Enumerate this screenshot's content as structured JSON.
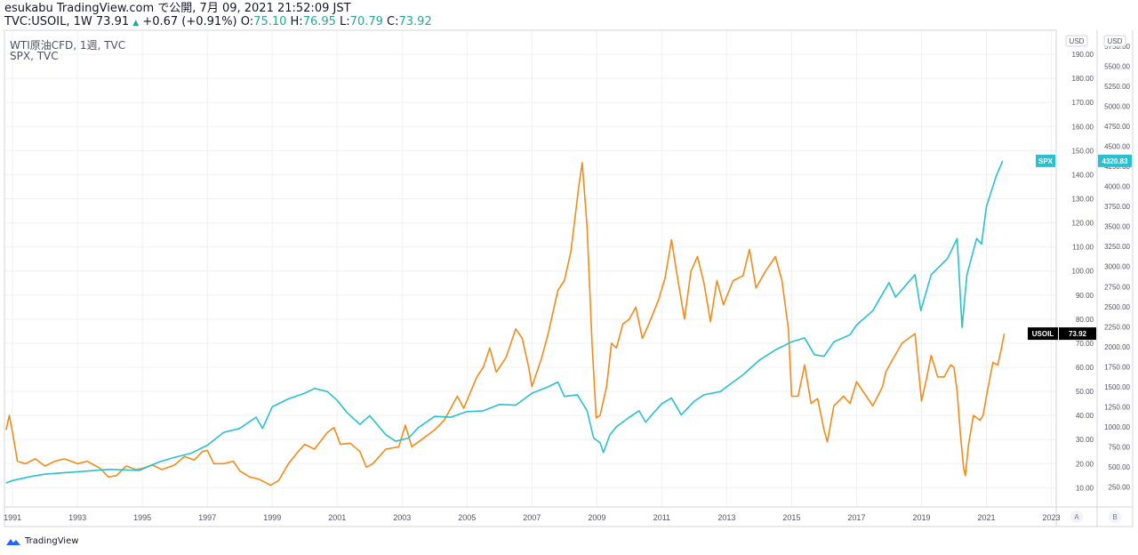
{
  "header": {
    "publish_line": "esukabu TradingView.com で公開, 7月 09, 2021 21:52:09 JST",
    "symbol": "TVC:USOIL, 1W",
    "last": "73.91",
    "change": "+0.67 (+0.91%)",
    "open_label": "O:",
    "open": "75.10",
    "high_label": "H:",
    "high": "76.95",
    "low_label": "L:",
    "low": "70.79",
    "close_label": "C:",
    "close": "73.92"
  },
  "legend": {
    "main": "WTI原油CFD, 1週, TVC",
    "compare": "SPX, TVC"
  },
  "footer": {
    "brand": "TradingView"
  },
  "colors": {
    "oil": "#f28b19",
    "spx": "#29c0cf",
    "up": "#26a69a",
    "badge_dark": "#000000"
  },
  "chart_data": {
    "type": "line",
    "xlim": [
      1990.75,
      2023.15
    ],
    "x_ticks": [
      "1991",
      "1993",
      "1995",
      "1997",
      "1999",
      "2001",
      "2003",
      "2005",
      "2007",
      "2009",
      "2011",
      "2013",
      "2015",
      "2017",
      "2019",
      "2021",
      "2023"
    ],
    "axis_a": {
      "label": "A",
      "unit": "USD",
      "ylim": [
        2,
        200
      ],
      "ticks": [
        "10.00",
        "20.00",
        "30.00",
        "40.00",
        "50.00",
        "60.00",
        "70.00",
        "80.00",
        "90.00",
        "100.00",
        "110.00",
        "120.00",
        "130.00",
        "140.00",
        "150.00",
        "160.00",
        "170.00",
        "180.00",
        "190.00"
      ]
    },
    "axis_b": {
      "label": "B",
      "unit": "USD",
      "ylim": [
        0,
        5950
      ],
      "ticks": [
        "250.00",
        "500.00",
        "750.00",
        "1000.00",
        "1250.00",
        "1500.00",
        "1750.00",
        "2000.00",
        "2250.00",
        "2500.00",
        "2750.00",
        "3000.00",
        "3250.00",
        "3500.00",
        "3750.00",
        "4000.00",
        "4250.00",
        "4500.00",
        "4750.00",
        "5000.00",
        "5250.00",
        "5500.00",
        "5750.00"
      ]
    },
    "grid": true,
    "series": [
      {
        "name": "USOIL",
        "axis": "A",
        "last_value": "73.92",
        "points": [
          [
            1990.8,
            34
          ],
          [
            1990.9,
            40
          ],
          [
            1991.0,
            33
          ],
          [
            1991.15,
            21
          ],
          [
            1991.4,
            20
          ],
          [
            1991.7,
            22
          ],
          [
            1992.0,
            19
          ],
          [
            1992.3,
            21
          ],
          [
            1992.6,
            22
          ],
          [
            1993.0,
            20
          ],
          [
            1993.3,
            21
          ],
          [
            1993.7,
            18
          ],
          [
            1993.95,
            14.5
          ],
          [
            1994.2,
            15
          ],
          [
            1994.5,
            19
          ],
          [
            1994.8,
            17.5
          ],
          [
            1995.0,
            18
          ],
          [
            1995.3,
            19.5
          ],
          [
            1995.6,
            17.5
          ],
          [
            1996.0,
            19.5
          ],
          [
            1996.3,
            23
          ],
          [
            1996.6,
            21.5
          ],
          [
            1996.85,
            25
          ],
          [
            1997.0,
            25.5
          ],
          [
            1997.2,
            20
          ],
          [
            1997.5,
            20
          ],
          [
            1997.8,
            21
          ],
          [
            1998.0,
            17
          ],
          [
            1998.3,
            14.5
          ],
          [
            1998.6,
            13.5
          ],
          [
            1998.95,
            11
          ],
          [
            1999.2,
            13
          ],
          [
            1999.5,
            20
          ],
          [
            1999.8,
            25
          ],
          [
            2000.0,
            28
          ],
          [
            2000.3,
            26
          ],
          [
            2000.7,
            33
          ],
          [
            2000.9,
            35
          ],
          [
            2001.1,
            28
          ],
          [
            2001.4,
            28.5
          ],
          [
            2001.7,
            25
          ],
          [
            2001.9,
            18.5
          ],
          [
            2002.1,
            20
          ],
          [
            2002.5,
            26
          ],
          [
            2002.9,
            27
          ],
          [
            2003.1,
            36
          ],
          [
            2003.3,
            27
          ],
          [
            2003.6,
            30
          ],
          [
            2004.0,
            34
          ],
          [
            2004.3,
            38
          ],
          [
            2004.7,
            48
          ],
          [
            2004.9,
            43
          ],
          [
            2005.3,
            56
          ],
          [
            2005.5,
            60
          ],
          [
            2005.7,
            68
          ],
          [
            2005.9,
            58
          ],
          [
            2006.2,
            64
          ],
          [
            2006.5,
            76
          ],
          [
            2006.7,
            72
          ],
          [
            2006.9,
            60
          ],
          [
            2007.0,
            52
          ],
          [
            2007.3,
            64
          ],
          [
            2007.5,
            74
          ],
          [
            2007.8,
            92
          ],
          [
            2008.0,
            96
          ],
          [
            2008.2,
            108
          ],
          [
            2008.45,
            136
          ],
          [
            2008.55,
            145
          ],
          [
            2008.7,
            118
          ],
          [
            2008.85,
            70
          ],
          [
            2008.98,
            39
          ],
          [
            2009.1,
            40
          ],
          [
            2009.3,
            52
          ],
          [
            2009.45,
            70
          ],
          [
            2009.6,
            68
          ],
          [
            2009.8,
            78
          ],
          [
            2010.0,
            80
          ],
          [
            2010.2,
            85
          ],
          [
            2010.4,
            72
          ],
          [
            2010.6,
            78
          ],
          [
            2010.9,
            88
          ],
          [
            2011.1,
            97
          ],
          [
            2011.3,
            113
          ],
          [
            2011.45,
            100
          ],
          [
            2011.7,
            80
          ],
          [
            2011.9,
            100
          ],
          [
            2012.1,
            106
          ],
          [
            2012.3,
            95
          ],
          [
            2012.5,
            79
          ],
          [
            2012.7,
            96
          ],
          [
            2012.9,
            86
          ],
          [
            2013.2,
            96
          ],
          [
            2013.5,
            98
          ],
          [
            2013.7,
            109
          ],
          [
            2013.9,
            93
          ],
          [
            2014.2,
            100
          ],
          [
            2014.5,
            106
          ],
          [
            2014.7,
            96
          ],
          [
            2014.9,
            76
          ],
          [
            2015.0,
            48
          ],
          [
            2015.2,
            48
          ],
          [
            2015.4,
            61
          ],
          [
            2015.6,
            45
          ],
          [
            2015.8,
            47
          ],
          [
            2016.0,
            34
          ],
          [
            2016.1,
            29
          ],
          [
            2016.3,
            44
          ],
          [
            2016.6,
            48
          ],
          [
            2016.8,
            45
          ],
          [
            2017.0,
            54
          ],
          [
            2017.3,
            48
          ],
          [
            2017.5,
            44
          ],
          [
            2017.8,
            52
          ],
          [
            2017.9,
            58
          ],
          [
            2018.1,
            63
          ],
          [
            2018.4,
            70
          ],
          [
            2018.6,
            72
          ],
          [
            2018.8,
            74
          ],
          [
            2019.0,
            46
          ],
          [
            2019.15,
            55
          ],
          [
            2019.3,
            65
          ],
          [
            2019.5,
            56
          ],
          [
            2019.7,
            56
          ],
          [
            2019.9,
            61
          ],
          [
            2020.0,
            60
          ],
          [
            2020.1,
            50
          ],
          [
            2020.2,
            32
          ],
          [
            2020.3,
            18
          ],
          [
            2020.35,
            15
          ],
          [
            2020.45,
            28
          ],
          [
            2020.6,
            40
          ],
          [
            2020.8,
            38
          ],
          [
            2020.9,
            40
          ],
          [
            2021.0,
            48
          ],
          [
            2021.2,
            62
          ],
          [
            2021.35,
            61
          ],
          [
            2021.45,
            67
          ],
          [
            2021.55,
            74
          ]
        ]
      },
      {
        "name": "SPX",
        "axis": "B",
        "last_value": "4320.83",
        "points": [
          [
            1990.8,
            300
          ],
          [
            1991.0,
            330
          ],
          [
            1991.5,
            375
          ],
          [
            1992.0,
            410
          ],
          [
            1993.0,
            440
          ],
          [
            1994.0,
            470
          ],
          [
            1994.9,
            455
          ],
          [
            1995.5,
            560
          ],
          [
            1996.0,
            620
          ],
          [
            1996.5,
            670
          ],
          [
            1997.0,
            770
          ],
          [
            1997.5,
            930
          ],
          [
            1998.0,
            980
          ],
          [
            1998.5,
            1120
          ],
          [
            1998.7,
            980
          ],
          [
            1999.0,
            1250
          ],
          [
            1999.5,
            1350
          ],
          [
            2000.0,
            1420
          ],
          [
            2000.3,
            1480
          ],
          [
            2000.7,
            1440
          ],
          [
            2001.0,
            1330
          ],
          [
            2001.3,
            1180
          ],
          [
            2001.7,
            1030
          ],
          [
            2002.0,
            1140
          ],
          [
            2002.5,
            900
          ],
          [
            2002.8,
            820
          ],
          [
            2003.2,
            860
          ],
          [
            2003.5,
            990
          ],
          [
            2004.0,
            1130
          ],
          [
            2004.5,
            1120
          ],
          [
            2005.0,
            1190
          ],
          [
            2005.5,
            1200
          ],
          [
            2006.0,
            1280
          ],
          [
            2006.5,
            1270
          ],
          [
            2007.0,
            1420
          ],
          [
            2007.5,
            1500
          ],
          [
            2007.8,
            1560
          ],
          [
            2008.0,
            1380
          ],
          [
            2008.4,
            1400
          ],
          [
            2008.7,
            1200
          ],
          [
            2008.9,
            860
          ],
          [
            2009.1,
            800
          ],
          [
            2009.2,
            680
          ],
          [
            2009.4,
            900
          ],
          [
            2009.6,
            1000
          ],
          [
            2010.0,
            1120
          ],
          [
            2010.3,
            1200
          ],
          [
            2010.5,
            1060
          ],
          [
            2011.0,
            1290
          ],
          [
            2011.3,
            1360
          ],
          [
            2011.6,
            1150
          ],
          [
            2012.0,
            1320
          ],
          [
            2012.3,
            1400
          ],
          [
            2012.8,
            1440
          ],
          [
            2013.0,
            1500
          ],
          [
            2013.5,
            1650
          ],
          [
            2014.0,
            1830
          ],
          [
            2014.5,
            1960
          ],
          [
            2015.0,
            2060
          ],
          [
            2015.4,
            2110
          ],
          [
            2015.7,
            1900
          ],
          [
            2016.0,
            1880
          ],
          [
            2016.3,
            2060
          ],
          [
            2016.8,
            2150
          ],
          [
            2017.0,
            2270
          ],
          [
            2017.5,
            2450
          ],
          [
            2018.0,
            2800
          ],
          [
            2018.2,
            2620
          ],
          [
            2018.8,
            2900
          ],
          [
            2018.98,
            2450
          ],
          [
            2019.3,
            2900
          ],
          [
            2019.8,
            3100
          ],
          [
            2020.1,
            3350
          ],
          [
            2020.2,
            2600
          ],
          [
            2020.25,
            2240
          ],
          [
            2020.4,
            2900
          ],
          [
            2020.7,
            3350
          ],
          [
            2020.85,
            3280
          ],
          [
            2021.0,
            3750
          ],
          [
            2021.3,
            4130
          ],
          [
            2021.5,
            4320
          ]
        ]
      }
    ]
  }
}
